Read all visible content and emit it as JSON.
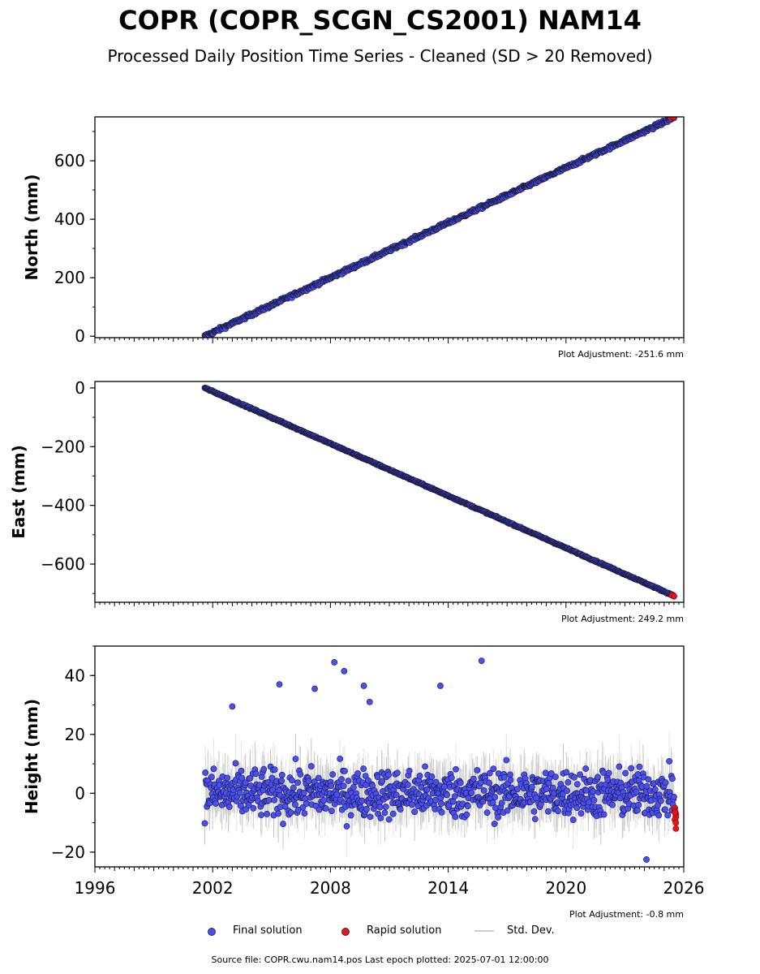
{
  "title": "COPR (COPR_SCGN_CS2001) NAM14",
  "subtitle": "Processed Daily Position Time Series - Cleaned (SD > 20 Removed)",
  "footer": "Source file: COPR.cwu.nam14.pos  Last epoch plotted: 2025-07-01 12:00:00",
  "legend": {
    "final": "Final solution",
    "rapid": "Rapid solution",
    "std": "Std. Dev."
  },
  "colors": {
    "final": "#4a4ef5",
    "rapid": "#e8141a",
    "std": "#cccccc",
    "edge": "#1a1a3a"
  },
  "chart_data": [
    {
      "type": "scatter",
      "ylabel": "North (mm)",
      "adjustment": "Plot Adjustment: -251.6 mm",
      "xlim": [
        1996,
        2026
      ],
      "ylim": [
        -5,
        750
      ],
      "yticks": [
        0,
        200,
        400,
        600
      ],
      "ytick_labels": [
        "0",
        "200",
        "400",
        "600"
      ],
      "xtick_labels_shown": false,
      "trend": {
        "x0": 2001.6,
        "y0": 0,
        "x1": 2025.5,
        "y1": 748
      },
      "noise": 5,
      "std_band": 0,
      "rapid_points": [
        [
          2025.35,
          745
        ],
        [
          2025.45,
          748
        ],
        [
          2025.5,
          750
        ]
      ]
    },
    {
      "type": "scatter",
      "ylabel": "East (mm)",
      "adjustment": "Plot Adjustment: 249.2 mm",
      "xlim": [
        1996,
        2026
      ],
      "ylim": [
        -730,
        22
      ],
      "yticks": [
        0,
        -200,
        -400,
        -600
      ],
      "ytick_labels": [
        "0",
        "−200",
        "−400",
        "−600"
      ],
      "xtick_labels_shown": false,
      "trend": {
        "x0": 2001.6,
        "y0": 0,
        "x1": 2025.5,
        "y1": -708
      },
      "noise": 2,
      "std_band": 0,
      "rapid_points": [
        [
          2025.4,
          -706
        ],
        [
          2025.5,
          -709
        ]
      ]
    },
    {
      "type": "scatter",
      "ylabel": "Height (mm)",
      "adjustment": "Plot Adjustment: -0.8 mm",
      "xlim": [
        1996,
        2026
      ],
      "ylim": [
        -25,
        50
      ],
      "yticks": [
        -20,
        0,
        20,
        40
      ],
      "ytick_labels": [
        "−20",
        "0",
        "20",
        "40"
      ],
      "xticks": [
        1996,
        2002,
        2008,
        2014,
        2020,
        2026
      ],
      "xtick_labels": [
        "1996",
        "2002",
        "2008",
        "2014",
        "2020",
        "2026"
      ],
      "xtick_labels_shown": true,
      "trend": {
        "x0": 2001.6,
        "y0": 0,
        "x1": 2025.5,
        "y1": 0
      },
      "noise": 7,
      "std_band": 7,
      "outliers": [
        [
          2005.4,
          37
        ],
        [
          2007.2,
          35.5
        ],
        [
          2008.2,
          44.5
        ],
        [
          2008.7,
          41.5
        ],
        [
          2009.7,
          36.5
        ],
        [
          2010.0,
          31
        ],
        [
          2013.6,
          36.5
        ],
        [
          2015.7,
          45
        ],
        [
          2003.0,
          29.5
        ],
        [
          2024.1,
          -22.5
        ]
      ],
      "rapid_points": [
        [
          2025.55,
          -5
        ],
        [
          2025.55,
          -6
        ],
        [
          2025.6,
          -7
        ],
        [
          2025.6,
          -8
        ],
        [
          2025.55,
          -9
        ],
        [
          2025.6,
          -10
        ],
        [
          2025.6,
          -12
        ],
        [
          2025.55,
          -6.5
        ]
      ]
    }
  ]
}
